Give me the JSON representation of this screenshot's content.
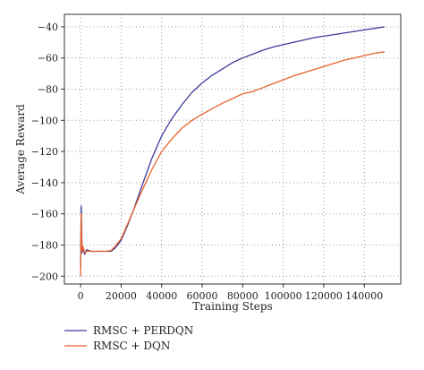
{
  "chart_data": {
    "type": "line",
    "title": "",
    "xlabel": "Training Steps",
    "ylabel": "Average Reward",
    "xlim": [
      -8000,
      158000
    ],
    "ylim": [
      -205,
      -32
    ],
    "xticks": [
      0,
      20000,
      40000,
      60000,
      80000,
      100000,
      120000,
      140000
    ],
    "xtick_labels": [
      "0",
      "20000",
      "40000",
      "60000",
      "80000",
      "100000",
      "120000",
      "140000"
    ],
    "yticks": [
      -200,
      -180,
      -160,
      -140,
      -120,
      -100,
      -80,
      -60,
      -40
    ],
    "ytick_labels": [
      "-200",
      "-180",
      "-160",
      "-140",
      "-120",
      "-100",
      "-80",
      "-60",
      "-40"
    ],
    "grid": true,
    "grid_style": "dotted",
    "legend_position": "bottom-left-below",
    "series": [
      {
        "name": "RMSC + PERDQN",
        "color": "#3b3b9a",
        "x": [
          0,
          300,
          700,
          1200,
          2000,
          3000,
          5000,
          8000,
          12000,
          15000,
          17000,
          20000,
          23000,
          26000,
          30000,
          35000,
          40000,
          45000,
          50000,
          55000,
          60000,
          65000,
          70000,
          75000,
          80000,
          85000,
          90000,
          95000,
          100000,
          105000,
          110000,
          115000,
          120000,
          125000,
          130000,
          135000,
          140000,
          145000,
          150000
        ],
        "y": [
          -195,
          -155,
          -185,
          -182,
          -186,
          -183,
          -184,
          -184,
          -184,
          -184,
          -182,
          -177,
          -168,
          -158,
          -143,
          -125,
          -110,
          -99,
          -90,
          -82,
          -76,
          -71,
          -67,
          -63,
          -60,
          -57.5,
          -55,
          -53,
          -51.5,
          -50,
          -48.5,
          -47,
          -46,
          -45,
          -44,
          -43,
          -42,
          -41,
          -40
        ]
      },
      {
        "name": "RMSC + DQN",
        "color": "#e8622a",
        "x": [
          0,
          300,
          700,
          1200,
          2000,
          3000,
          5000,
          8000,
          12000,
          15000,
          17000,
          20000,
          23000,
          26000,
          30000,
          35000,
          40000,
          45000,
          50000,
          55000,
          60000,
          65000,
          70000,
          75000,
          80000,
          85000,
          90000,
          95000,
          100000,
          105000,
          110000,
          115000,
          120000,
          125000,
          130000,
          135000,
          140000,
          145000,
          150000
        ],
        "y": [
          -200,
          -160,
          -184,
          -181,
          -185,
          -184,
          -184,
          -184,
          -184,
          -183.5,
          -181,
          -176,
          -167,
          -158,
          -146,
          -132,
          -120,
          -112,
          -105,
          -100,
          -96,
          -92.5,
          -89,
          -86,
          -83,
          -81.5,
          -79,
          -76.5,
          -74,
          -71.5,
          -69.5,
          -67.5,
          -65.5,
          -63.5,
          -61.5,
          -60,
          -58.5,
          -57,
          -56
        ]
      }
    ]
  }
}
